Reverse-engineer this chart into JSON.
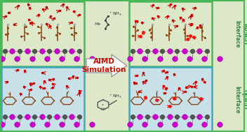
{
  "bg_color": "#dde8c8",
  "panel_bg_rp": "#dde8c8",
  "panel_bg_dj": "#c8e0e8",
  "panel_border_rp": "#4ab858",
  "panel_border_dj": "#40a8c0",
  "aimd_text": "AIMD\nSimulation",
  "aimd_color": "#cc1100",
  "rp_label": "RP/H₂O\nInterface",
  "dj_label": "DJ/H₂O\nInterface",
  "label_color": "#2a9040",
  "water_color": "#cc0000",
  "pb_color": "#555555",
  "halide_color": "#cc00cc",
  "chain_color": "#8B4513",
  "fig_width": 3.49,
  "fig_height": 1.89
}
